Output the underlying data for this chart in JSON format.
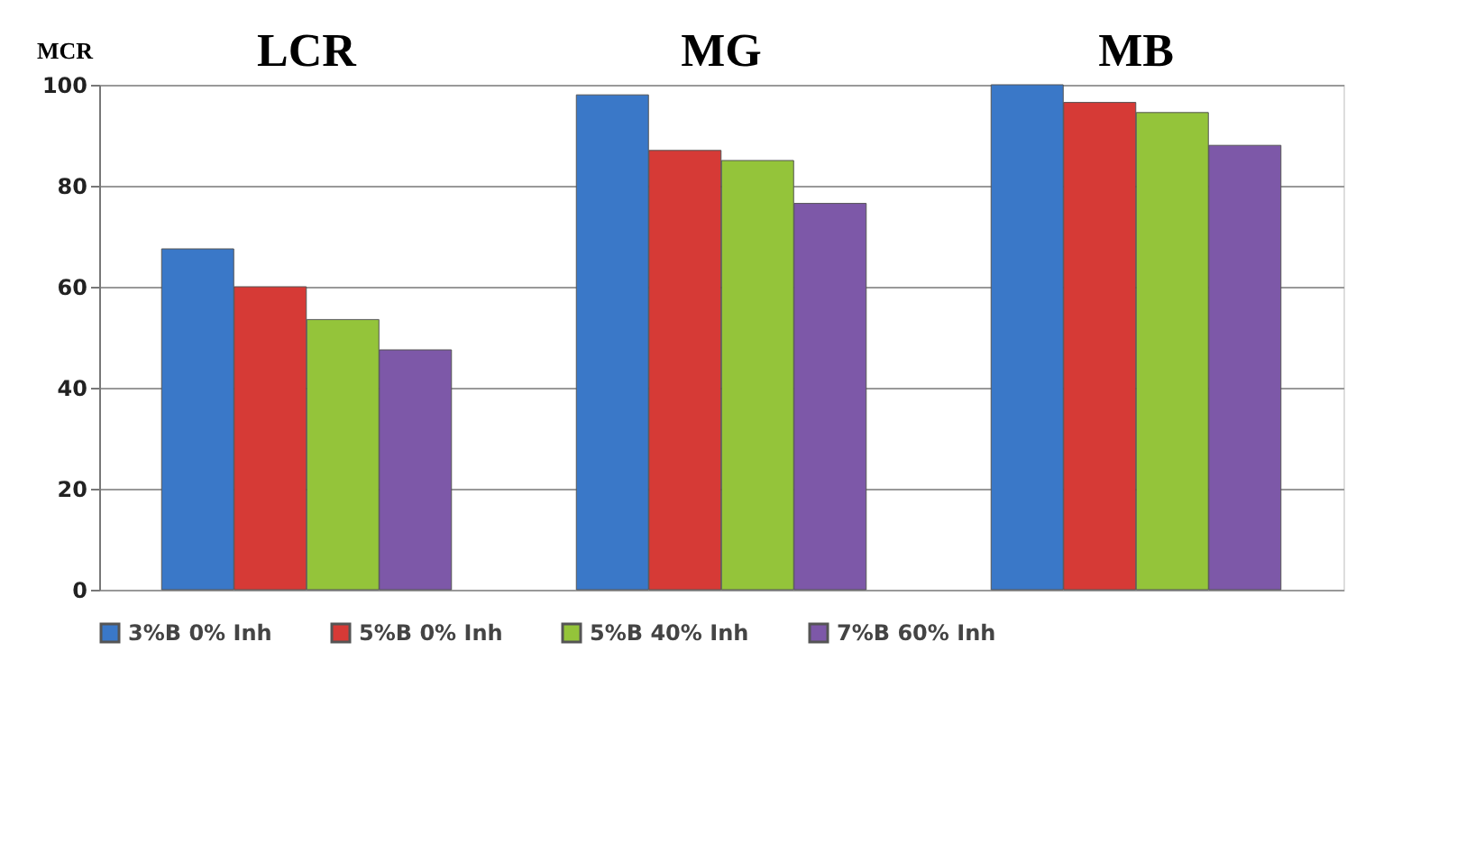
{
  "chart_data": {
    "type": "bar",
    "ylabel": "MCR",
    "categories": [
      "LCR",
      "MG",
      "MB"
    ],
    "series": [
      {
        "name": "3%B 0% Inh",
        "color": "#3a78c8",
        "values": [
          67.5,
          98,
          100
        ]
      },
      {
        "name": "5%B 0% Inh",
        "color": "#d63a36",
        "values": [
          60,
          87,
          96.5
        ]
      },
      {
        "name": "5%B 40% Inh",
        "color": "#94c43a",
        "values": [
          53.5,
          85,
          94.5
        ]
      },
      {
        "name": "7%B 60% Inh",
        "color": "#7d58a8",
        "values": [
          47.5,
          76.5,
          88
        ]
      }
    ],
    "ylim": [
      0,
      100
    ],
    "yticks": [
      0,
      20,
      40,
      60,
      80,
      100
    ],
    "grid": "y",
    "legend": "bottom"
  }
}
